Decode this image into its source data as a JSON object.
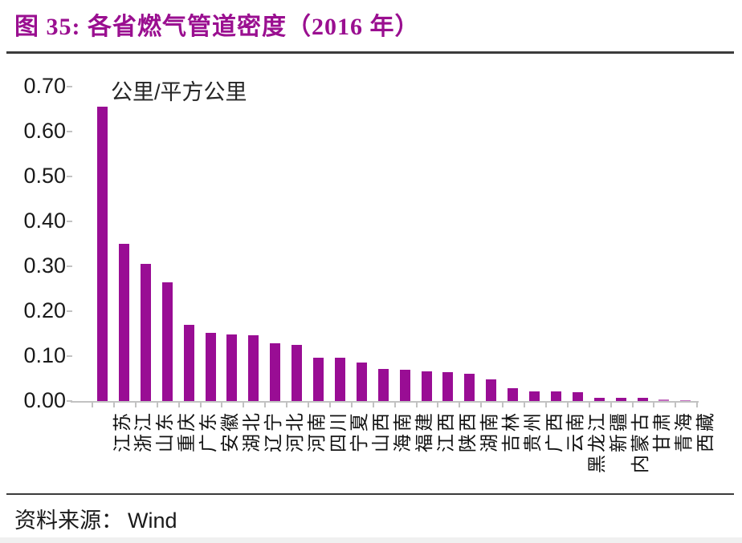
{
  "header": {
    "title": "图 35: 各省燃气管道密度（2016 年）"
  },
  "footer": {
    "source_label": "资料来源：",
    "source_name": "Wind"
  },
  "colors": {
    "accent_purple": "#990d94",
    "title_purple": "#9a0f90",
    "axis_gray": "#c2c2c2",
    "rule_dark": "#3b3b3b"
  },
  "chart_data": {
    "type": "bar",
    "title": "图 35: 各省燃气管道密度（2016 年）",
    "unit_label": "公里/平方公里",
    "categories": [
      "江苏",
      "浙江",
      "山东",
      "重庆",
      "广东",
      "安徽",
      "湖北",
      "辽宁",
      "河北",
      "河南",
      "四川",
      "宁夏",
      "山西",
      "海南",
      "福建",
      "江西",
      "陕西",
      "湖南",
      "吉林",
      "贵州",
      "广西",
      "云南",
      "黑龙江",
      "新疆",
      "内蒙古",
      "甘肃",
      "青海",
      "西藏"
    ],
    "values": [
      0.655,
      0.35,
      0.305,
      0.265,
      0.17,
      0.152,
      0.149,
      0.147,
      0.128,
      0.125,
      0.096,
      0.096,
      0.085,
      0.072,
      0.07,
      0.066,
      0.065,
      0.06,
      0.048,
      0.028,
      0.021,
      0.021,
      0.019,
      0.007,
      0.007,
      0.007,
      0.004,
      0.001
    ],
    "ylim": [
      0,
      0.7
    ],
    "ytick_labels": [
      "0.00",
      "0.10",
      "0.20",
      "0.30",
      "0.40",
      "0.50",
      "0.60",
      "0.70"
    ],
    "bar_color": "#990d94",
    "grid": false,
    "legend": "none",
    "xlabel": "",
    "ylabel": "公里/平方公里"
  }
}
